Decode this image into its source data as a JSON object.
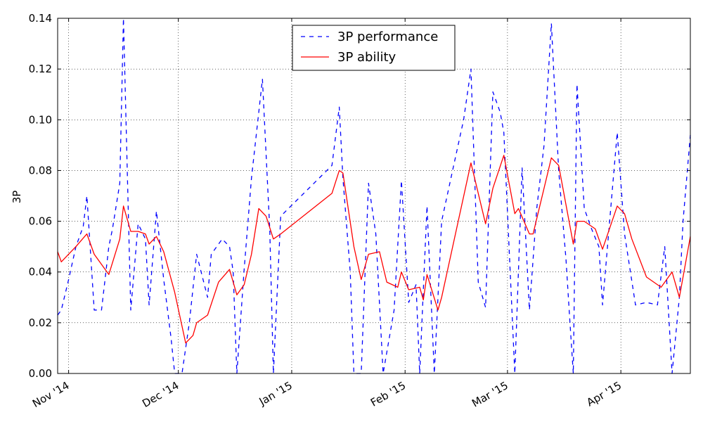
{
  "chart_data": {
    "type": "line",
    "title": "",
    "xlabel": "",
    "ylabel": "3P",
    "x_axis_type": "date",
    "xlim": [
      "2014-10-29",
      "2015-04-20"
    ],
    "ylim": [
      0,
      0.14
    ],
    "x_ticks": [
      {
        "date": "2014-11-01",
        "label": "Nov '14"
      },
      {
        "date": "2014-12-01",
        "label": "Dec '14"
      },
      {
        "date": "2015-01-01",
        "label": "Jan '15"
      },
      {
        "date": "2015-02-01",
        "label": "Feb '15"
      },
      {
        "date": "2015-03-01",
        "label": "Mar '15"
      },
      {
        "date": "2015-04-01",
        "label": "Apr '15"
      }
    ],
    "y_ticks": [
      "0.00",
      "0.02",
      "0.04",
      "0.06",
      "0.08",
      "0.10",
      "0.12",
      "0.14"
    ],
    "grid": true,
    "legend_position": "top-center",
    "series": [
      {
        "name": "3P performance",
        "color": "#0000ff",
        "style": "dashed",
        "points": [
          [
            "2014-10-29",
            0.023
          ],
          [
            "2014-10-30",
            0.025
          ],
          [
            "2014-11-01",
            0.037
          ],
          [
            "2014-11-03",
            0.05
          ],
          [
            "2014-11-05",
            0.058
          ],
          [
            "2014-11-06",
            0.07
          ],
          [
            "2014-11-08",
            0.025
          ],
          [
            "2014-11-10",
            0.025
          ],
          [
            "2014-11-12",
            0.05
          ],
          [
            "2014-11-13",
            0.057
          ],
          [
            "2014-11-15",
            0.075
          ],
          [
            "2014-11-16",
            0.14
          ],
          [
            "2014-11-18",
            0.025
          ],
          [
            "2014-11-20",
            0.059
          ],
          [
            "2014-11-22",
            0.053
          ],
          [
            "2014-11-23",
            0.027
          ],
          [
            "2014-11-25",
            0.064
          ],
          [
            "2014-11-27",
            0.037
          ],
          [
            "2014-11-29",
            0.014
          ],
          [
            "2014-11-30",
            0.0
          ],
          [
            "2014-12-02",
            0.0
          ],
          [
            "2014-12-04",
            0.02
          ],
          [
            "2014-12-06",
            0.047
          ],
          [
            "2014-12-09",
            0.03
          ],
          [
            "2014-12-10",
            0.047
          ],
          [
            "2014-12-13",
            0.053
          ],
          [
            "2014-12-15",
            0.05
          ],
          [
            "2014-12-16",
            0.04
          ],
          [
            "2014-12-17",
            0.0
          ],
          [
            "2014-12-19",
            0.041
          ],
          [
            "2014-12-21",
            0.077
          ],
          [
            "2014-12-24",
            0.116
          ],
          [
            "2014-12-26",
            0.057
          ],
          [
            "2014-12-27",
            0.0
          ],
          [
            "2014-12-29",
            0.062
          ],
          [
            "2015-01-12",
            0.082
          ],
          [
            "2015-01-14",
            0.105
          ],
          [
            "2015-01-15",
            0.077
          ],
          [
            "2015-01-17",
            0.04
          ],
          [
            "2015-01-18",
            0.0
          ],
          [
            "2015-01-20",
            0.0
          ],
          [
            "2015-01-22",
            0.075
          ],
          [
            "2015-01-24",
            0.055
          ],
          [
            "2015-01-26",
            0.0
          ],
          [
            "2015-01-29",
            0.025
          ],
          [
            "2015-01-31",
            0.076
          ],
          [
            "2015-02-02",
            0.028
          ],
          [
            "2015-02-04",
            0.035
          ],
          [
            "2015-02-05",
            0.0
          ],
          [
            "2015-02-07",
            0.066
          ],
          [
            "2015-02-09",
            0.0
          ],
          [
            "2015-02-11",
            0.06
          ],
          [
            "2015-02-14",
            0.08
          ],
          [
            "2015-02-17",
            0.1
          ],
          [
            "2015-02-19",
            0.12
          ],
          [
            "2015-02-21",
            0.036
          ],
          [
            "2015-02-23",
            0.026
          ],
          [
            "2015-02-25",
            0.111
          ],
          [
            "2015-02-27",
            0.103
          ],
          [
            "2015-02-28",
            0.095
          ],
          [
            "2015-03-03",
            0.0
          ],
          [
            "2015-03-05",
            0.081
          ],
          [
            "2015-03-07",
            0.025
          ],
          [
            "2015-03-09",
            0.065
          ],
          [
            "2015-03-11",
            0.09
          ],
          [
            "2015-03-13",
            0.138
          ],
          [
            "2015-03-15",
            0.08
          ],
          [
            "2015-03-17",
            0.045
          ],
          [
            "2015-03-18",
            0.022
          ],
          [
            "2015-03-19",
            0.0
          ],
          [
            "2015-03-20",
            0.114
          ],
          [
            "2015-03-22",
            0.065
          ],
          [
            "2015-03-24",
            0.057
          ],
          [
            "2015-03-26",
            0.05
          ],
          [
            "2015-03-27",
            0.027
          ],
          [
            "2015-03-29",
            0.061
          ],
          [
            "2015-03-31",
            0.095
          ],
          [
            "2015-04-02",
            0.055
          ],
          [
            "2015-04-05",
            0.027
          ],
          [
            "2015-04-08",
            0.028
          ],
          [
            "2015-04-11",
            0.027
          ],
          [
            "2015-04-13",
            0.05
          ],
          [
            "2015-04-15",
            0.0
          ],
          [
            "2015-04-17",
            0.03
          ],
          [
            "2015-04-18",
            0.06
          ],
          [
            "2015-04-20",
            0.094
          ]
        ]
      },
      {
        "name": "3P ability",
        "color": "#ff0000",
        "style": "solid",
        "points": [
          [
            "2014-10-29",
            0.048
          ],
          [
            "2014-10-30",
            0.044
          ],
          [
            "2014-11-03",
            0.05
          ],
          [
            "2014-11-06",
            0.055
          ],
          [
            "2014-11-08",
            0.047
          ],
          [
            "2014-11-12",
            0.039
          ],
          [
            "2014-11-15",
            0.053
          ],
          [
            "2014-11-16",
            0.066
          ],
          [
            "2014-11-18",
            0.056
          ],
          [
            "2014-11-20",
            0.056
          ],
          [
            "2014-11-22",
            0.055
          ],
          [
            "2014-11-23",
            0.051
          ],
          [
            "2014-11-25",
            0.054
          ],
          [
            "2014-11-27",
            0.048
          ],
          [
            "2014-11-30",
            0.032
          ],
          [
            "2014-12-03",
            0.012
          ],
          [
            "2014-12-05",
            0.015
          ],
          [
            "2014-12-06",
            0.02
          ],
          [
            "2014-12-09",
            0.023
          ],
          [
            "2014-12-12",
            0.036
          ],
          [
            "2014-12-15",
            0.041
          ],
          [
            "2014-12-17",
            0.031
          ],
          [
            "2014-12-19",
            0.035
          ],
          [
            "2014-12-21",
            0.047
          ],
          [
            "2014-12-23",
            0.065
          ],
          [
            "2014-12-25",
            0.062
          ],
          [
            "2014-12-27",
            0.053
          ],
          [
            "2014-12-29",
            0.055
          ],
          [
            "2015-01-12",
            0.071
          ],
          [
            "2015-01-14",
            0.08
          ],
          [
            "2015-01-15",
            0.079
          ],
          [
            "2015-01-18",
            0.05
          ],
          [
            "2015-01-20",
            0.037
          ],
          [
            "2015-01-22",
            0.047
          ],
          [
            "2015-01-25",
            0.048
          ],
          [
            "2015-01-27",
            0.036
          ],
          [
            "2015-01-30",
            0.034
          ],
          [
            "2015-01-31",
            0.04
          ],
          [
            "2015-02-02",
            0.033
          ],
          [
            "2015-02-05",
            0.034
          ],
          [
            "2015-02-06",
            0.029
          ],
          [
            "2015-02-07",
            0.039
          ],
          [
            "2015-02-10",
            0.025
          ],
          [
            "2015-02-11",
            0.03
          ],
          [
            "2015-02-19",
            0.083
          ],
          [
            "2015-02-23",
            0.059
          ],
          [
            "2015-02-25",
            0.073
          ],
          [
            "2015-02-28",
            0.086
          ],
          [
            "2015-03-03",
            0.063
          ],
          [
            "2015-03-04",
            0.065
          ],
          [
            "2015-03-07",
            0.055
          ],
          [
            "2015-03-08",
            0.055
          ],
          [
            "2015-03-13",
            0.085
          ],
          [
            "2015-03-15",
            0.082
          ],
          [
            "2015-03-19",
            0.051
          ],
          [
            "2015-03-20",
            0.06
          ],
          [
            "2015-03-22",
            0.06
          ],
          [
            "2015-03-25",
            0.057
          ],
          [
            "2015-03-27",
            0.049
          ],
          [
            "2015-03-31",
            0.066
          ],
          [
            "2015-04-02",
            0.063
          ],
          [
            "2015-04-04",
            0.053
          ],
          [
            "2015-04-08",
            0.038
          ],
          [
            "2015-04-12",
            0.034
          ],
          [
            "2015-04-15",
            0.04
          ],
          [
            "2015-04-17",
            0.03
          ],
          [
            "2015-04-20",
            0.054
          ]
        ]
      }
    ]
  }
}
